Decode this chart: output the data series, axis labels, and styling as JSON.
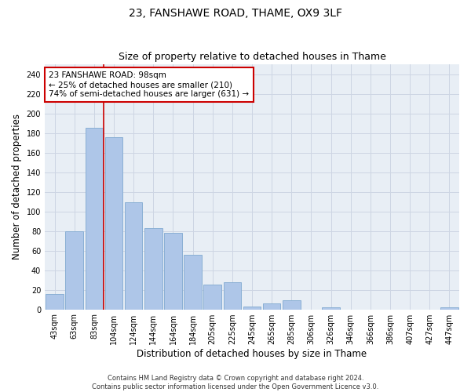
{
  "title": "23, FANSHAWE ROAD, THAME, OX9 3LF",
  "subtitle": "Size of property relative to detached houses in Thame",
  "xlabel": "Distribution of detached houses by size in Thame",
  "ylabel": "Number of detached properties",
  "categories": [
    "43sqm",
    "63sqm",
    "83sqm",
    "104sqm",
    "124sqm",
    "144sqm",
    "164sqm",
    "184sqm",
    "205sqm",
    "225sqm",
    "245sqm",
    "265sqm",
    "285sqm",
    "306sqm",
    "326sqm",
    "346sqm",
    "366sqm",
    "386sqm",
    "407sqm",
    "427sqm",
    "447sqm"
  ],
  "values": [
    16,
    80,
    185,
    176,
    109,
    83,
    78,
    56,
    25,
    28,
    3,
    6,
    9,
    0,
    2,
    0,
    0,
    0,
    0,
    0,
    2
  ],
  "bar_color": "#aec6e8",
  "bar_edge_color": "#8aafd4",
  "property_line_bin_index": 2.5,
  "annotation_line1": "23 FANSHAWE ROAD: 98sqm",
  "annotation_line2": "← 25% of detached houses are smaller (210)",
  "annotation_line3": "74% of semi-detached houses are larger (631) →",
  "annotation_box_color": "#ffffff",
  "annotation_box_edge_color": "#cc0000",
  "vline_color": "#cc0000",
  "ylim": [
    0,
    250
  ],
  "yticks": [
    0,
    20,
    40,
    60,
    80,
    100,
    120,
    140,
    160,
    180,
    200,
    220,
    240
  ],
  "grid_color": "#cdd5e3",
  "bg_color": "#e8eef5",
  "footer_line1": "Contains HM Land Registry data © Crown copyright and database right 2024.",
  "footer_line2": "Contains public sector information licensed under the Open Government Licence v3.0.",
  "title_fontsize": 10,
  "subtitle_fontsize": 9,
  "axis_label_fontsize": 8.5,
  "tick_fontsize": 7,
  "annotation_fontsize": 7.5,
  "footer_fontsize": 6
}
